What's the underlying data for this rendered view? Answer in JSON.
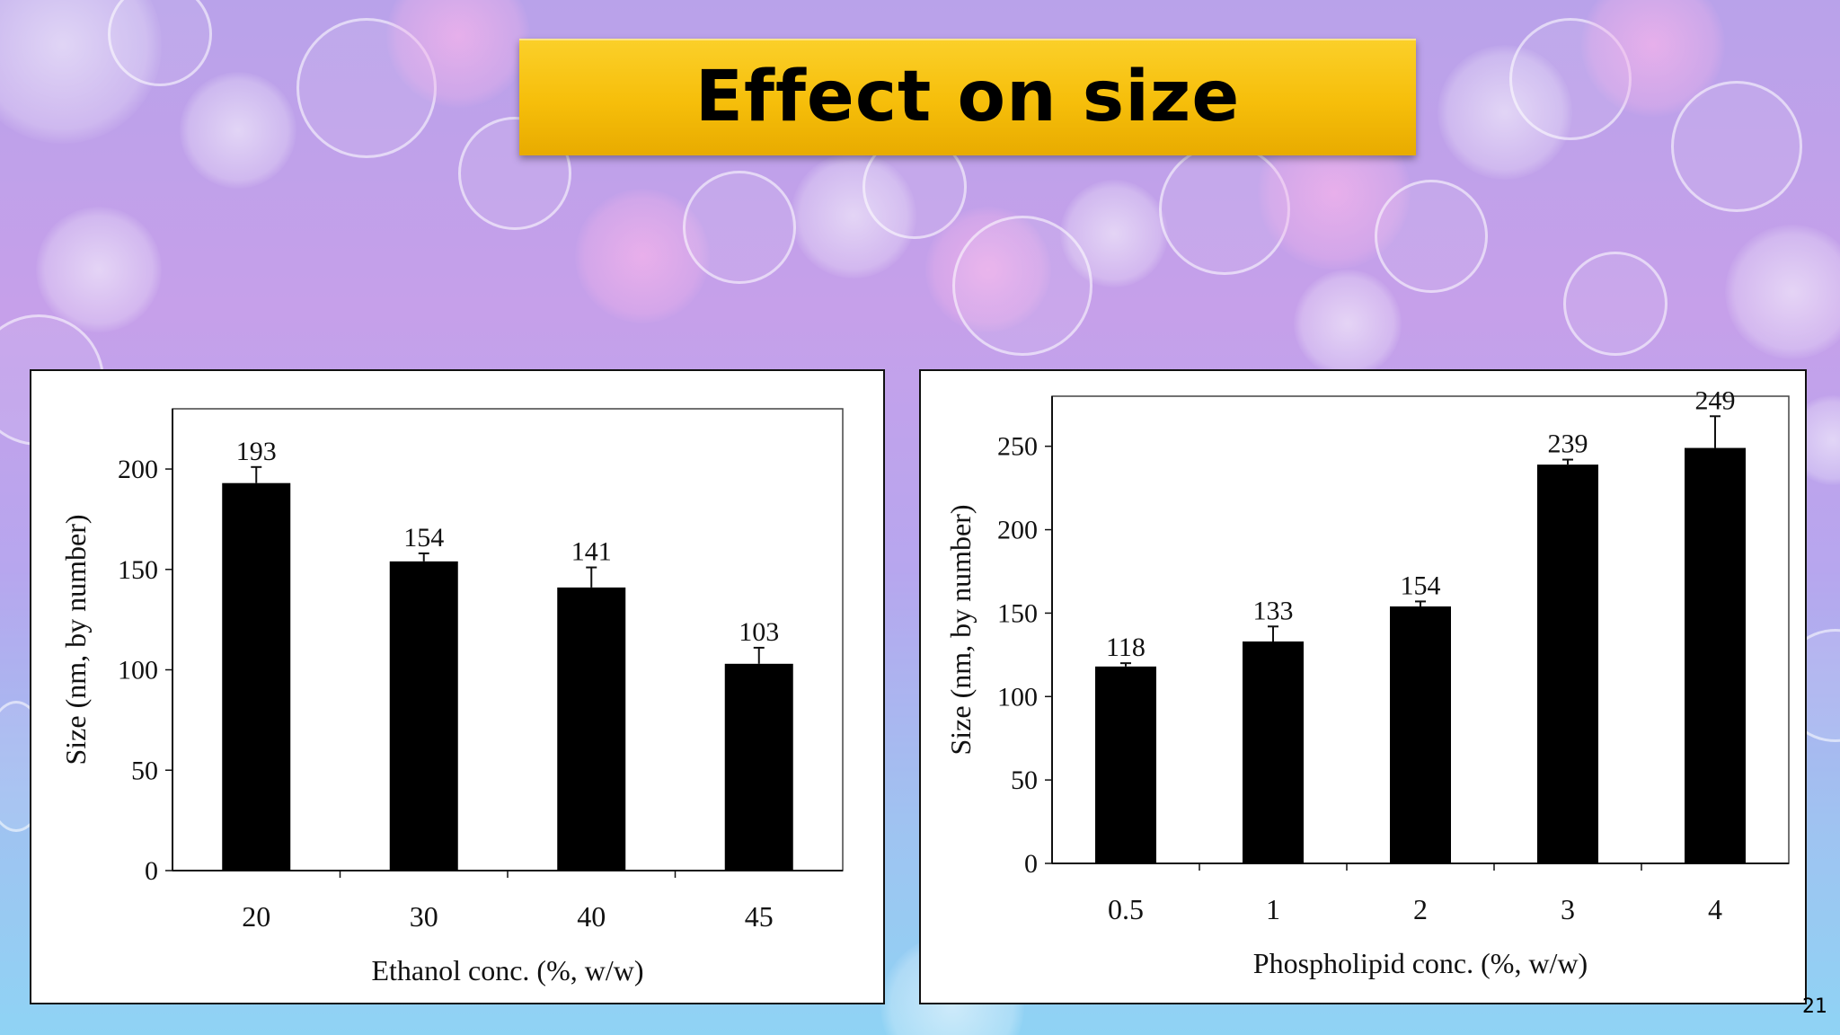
{
  "slide": {
    "title": "Effect on size",
    "page_number": "21"
  },
  "colors": {
    "banner": "#f6be0a",
    "bar": "#000000"
  },
  "chart_data": [
    {
      "type": "bar",
      "categories": [
        "20",
        "30",
        "40",
        "45"
      ],
      "values": [
        193,
        154,
        141,
        103
      ],
      "data_labels": [
        "193",
        "154",
        "141",
        "103"
      ],
      "error": [
        8,
        4,
        10,
        8
      ],
      "xlabel": "Ethanol conc. (%, w/w)",
      "ylabel": "Size (nm, by number)",
      "ylim": [
        0,
        200
      ],
      "yaxis_max": 230,
      "yticks": [
        0,
        50,
        100,
        150,
        200
      ],
      "grid": false
    },
    {
      "type": "bar",
      "categories": [
        "0.5",
        "1",
        "2",
        "3",
        "4"
      ],
      "values": [
        118,
        133,
        154,
        239,
        249
      ],
      "data_labels": [
        "118",
        "133",
        "154",
        "239",
        "249"
      ],
      "error": [
        2,
        9,
        3,
        3,
        19
      ],
      "xlabel": "Phospholipid conc. (%, w/w)",
      "ylabel": "Size (nm, by number)",
      "ylim": [
        0,
        250
      ],
      "yaxis_max": 280,
      "yticks": [
        0,
        50,
        100,
        150,
        200,
        250
      ],
      "grid": false
    }
  ]
}
